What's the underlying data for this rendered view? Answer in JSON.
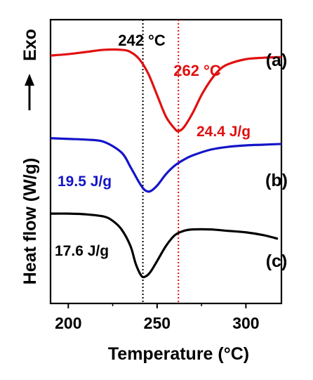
{
  "chart_data": {
    "type": "line",
    "xlabel": "Temperature (°C)",
    "ylabel": "Heat flow (W/g)",
    "exo_label": "Exo",
    "xlim": [
      190,
      320
    ],
    "xticks": [
      200,
      250,
      300
    ],
    "grid": false,
    "legend": "none",
    "series": [
      {
        "name": "(a)",
        "color": "#e01010",
        "offset": 3.1,
        "x": [
          190,
          200,
          210,
          220,
          230,
          235,
          240,
          245,
          250,
          255,
          260,
          262,
          265,
          270,
          275,
          280,
          285,
          290,
          300,
          310,
          320
        ],
        "y": [
          0.0,
          0.02,
          0.05,
          0.08,
          0.08,
          0.05,
          -0.05,
          -0.25,
          -0.55,
          -0.85,
          -1.02,
          -1.05,
          -1.0,
          -0.8,
          -0.55,
          -0.35,
          -0.2,
          -0.12,
          -0.05,
          -0.03,
          -0.02
        ]
      },
      {
        "name": "(b)",
        "color": "#1414c8",
        "offset": 1.95,
        "x": [
          190,
          200,
          210,
          220,
          230,
          235,
          240,
          243,
          246,
          250,
          255,
          260,
          265,
          270,
          280,
          290,
          300,
          310,
          320
        ],
        "y": [
          0.0,
          -0.01,
          -0.02,
          -0.05,
          -0.2,
          -0.4,
          -0.62,
          -0.72,
          -0.74,
          -0.66,
          -0.5,
          -0.38,
          -0.3,
          -0.24,
          -0.16,
          -0.12,
          -0.1,
          -0.09,
          -0.08
        ]
      },
      {
        "name": "(c)",
        "color": "#000000",
        "offset": 0.9,
        "x": [
          190,
          200,
          210,
          220,
          225,
          230,
          235,
          238,
          241,
          243,
          246,
          250,
          255,
          260,
          265,
          270,
          280,
          290,
          300,
          310,
          318
        ],
        "y": [
          0.0,
          0.0,
          -0.01,
          -0.04,
          -0.1,
          -0.22,
          -0.45,
          -0.7,
          -0.86,
          -0.88,
          -0.82,
          -0.66,
          -0.45,
          -0.3,
          -0.24,
          -0.22,
          -0.22,
          -0.24,
          -0.26,
          -0.3,
          -0.35
        ]
      }
    ],
    "vlines": [
      {
        "x": 242,
        "label": "242 °C",
        "color": "#000000"
      },
      {
        "x": 262,
        "label": "262 °C",
        "color": "#e01010"
      }
    ],
    "annotations": [
      {
        "text": "24.4 J/g",
        "color": "#e01010"
      },
      {
        "text": "19.5 J/g",
        "color": "#1414c8"
      },
      {
        "text": "17.6 J/g",
        "color": "#000000"
      }
    ]
  }
}
